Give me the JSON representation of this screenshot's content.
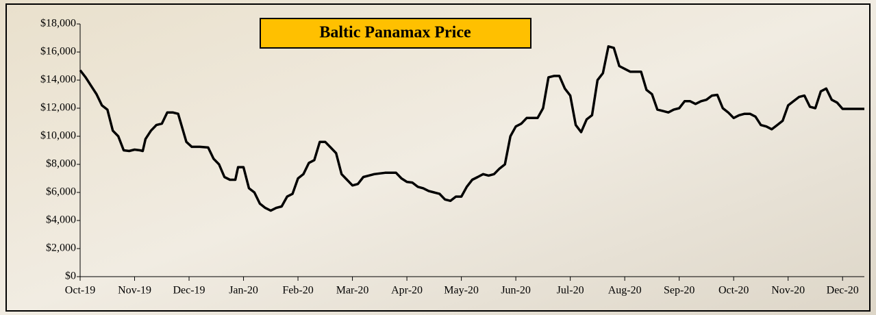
{
  "chart_data": {
    "type": "line",
    "title": "Baltic Panamax Price",
    "x": [
      0,
      0.1,
      0.2,
      0.3,
      0.4,
      0.5,
      0.6,
      0.7,
      0.8,
      0.9,
      1.0,
      1.1,
      1.15,
      1.2,
      1.3,
      1.4,
      1.5,
      1.6,
      1.7,
      1.8,
      1.95,
      2.05,
      2.2,
      2.35,
      2.45,
      2.55,
      2.65,
      2.75,
      2.85,
      2.9,
      3.0,
      3.1,
      3.2,
      3.3,
      3.4,
      3.5,
      3.6,
      3.7,
      3.8,
      3.9,
      4.0,
      4.1,
      4.2,
      4.3,
      4.4,
      4.5,
      4.6,
      4.7,
      4.8,
      4.9,
      5.0,
      5.1,
      5.2,
      5.3,
      5.4,
      5.5,
      5.6,
      5.7,
      5.8,
      5.9,
      6.0,
      6.1,
      6.2,
      6.3,
      6.4,
      6.5,
      6.6,
      6.7,
      6.8,
      6.9,
      7.0,
      7.1,
      7.2,
      7.3,
      7.4,
      7.5,
      7.6,
      7.7,
      7.8,
      7.9,
      8.0,
      8.1,
      8.2,
      8.3,
      8.4,
      8.5,
      8.6,
      8.7,
      8.8,
      8.9,
      9.0,
      9.1,
      9.2,
      9.3,
      9.4,
      9.5,
      9.6,
      9.7,
      9.8,
      9.9,
      10.0,
      10.1,
      10.2,
      10.3,
      10.4,
      10.5,
      10.6,
      10.7,
      10.8,
      10.9,
      11.0,
      11.1,
      11.2,
      11.3,
      11.4,
      11.5,
      11.6,
      11.7,
      11.8,
      11.9,
      12.0,
      12.1,
      12.2,
      12.3,
      12.4,
      12.5,
      12.6,
      12.7,
      12.8,
      12.9,
      13.0,
      13.1,
      13.2,
      13.3,
      13.4,
      13.5,
      13.6,
      13.7,
      13.8,
      13.9,
      14.0,
      14.2,
      14.4
    ],
    "series": [
      {
        "color": "#000000",
        "values": [
          14700,
          14200,
          13600,
          13000,
          12200,
          11900,
          10400,
          10000,
          9000,
          8950,
          9050,
          9000,
          8950,
          9800,
          10400,
          10800,
          10900,
          11700,
          11700,
          11600,
          9600,
          9250,
          9250,
          9200,
          8400,
          8000,
          7100,
          6900,
          6900,
          7800,
          7800,
          6300,
          6000,
          5200,
          4900,
          4700,
          4900,
          5000,
          5700,
          5900,
          7000,
          7300,
          8100,
          8300,
          9600,
          9600,
          9200,
          8800,
          7300,
          6900,
          6500,
          6600,
          7100,
          7200,
          7300,
          7350,
          7400,
          7400,
          7400,
          7000,
          6750,
          6700,
          6400,
          6300,
          6100,
          6000,
          5900,
          5500,
          5400,
          5700,
          5700,
          6400,
          6900,
          7100,
          7300,
          7200,
          7300,
          7700,
          8000,
          10000,
          10700,
          10900,
          11300,
          11300,
          11300,
          12000,
          14200,
          14300,
          14300,
          13400,
          12900,
          10800,
          10300,
          11200,
          11500,
          14000,
          14500,
          16400,
          16300,
          15000,
          14800,
          14600,
          14600,
          14600,
          13300,
          13000,
          11900,
          11800,
          11700,
          11900,
          12000,
          12500,
          12500,
          12300,
          12500,
          12600,
          12900,
          12950,
          12000,
          11700,
          11300,
          11500,
          11600,
          11600,
          11400,
          10800,
          10700,
          10500,
          10800,
          11100,
          12200,
          12500,
          12800,
          12900,
          12100,
          12000,
          13200,
          13400,
          12600,
          12400,
          11950,
          11950,
          11950
        ]
      }
    ],
    "xlim": [
      0,
      14.4
    ],
    "xticks": [
      {
        "value": 0,
        "label": "Oct-19"
      },
      {
        "value": 1,
        "label": "Nov-19"
      },
      {
        "value": 2,
        "label": "Dec-19"
      },
      {
        "value": 3,
        "label": "Jan-20"
      },
      {
        "value": 4,
        "label": "Feb-20"
      },
      {
        "value": 5,
        "label": "Mar-20"
      },
      {
        "value": 6,
        "label": "Apr-20"
      },
      {
        "value": 7,
        "label": "May-20"
      },
      {
        "value": 8,
        "label": "Jun-20"
      },
      {
        "value": 9,
        "label": "Jul-20"
      },
      {
        "value": 10,
        "label": "Aug-20"
      },
      {
        "value": 11,
        "label": "Sep-20"
      },
      {
        "value": 12,
        "label": "Oct-20"
      },
      {
        "value": 13,
        "label": "Nov-20"
      },
      {
        "value": 14,
        "label": "Dec-20"
      }
    ],
    "ylim": [
      0,
      18000
    ],
    "yticks": [
      {
        "value": 0,
        "label": "$0"
      },
      {
        "value": 2000,
        "label": "$2,000"
      },
      {
        "value": 4000,
        "label": "$4,000"
      },
      {
        "value": 6000,
        "label": "$6,000"
      },
      {
        "value": 8000,
        "label": "$8,000"
      },
      {
        "value": 10000,
        "label": "$10,000"
      },
      {
        "value": 12000,
        "label": "$12,000"
      },
      {
        "value": 14000,
        "label": "$14,000"
      },
      {
        "value": 16000,
        "label": "$16,000"
      },
      {
        "value": 18000,
        "label": "$18,000"
      }
    ],
    "grid": false
  }
}
